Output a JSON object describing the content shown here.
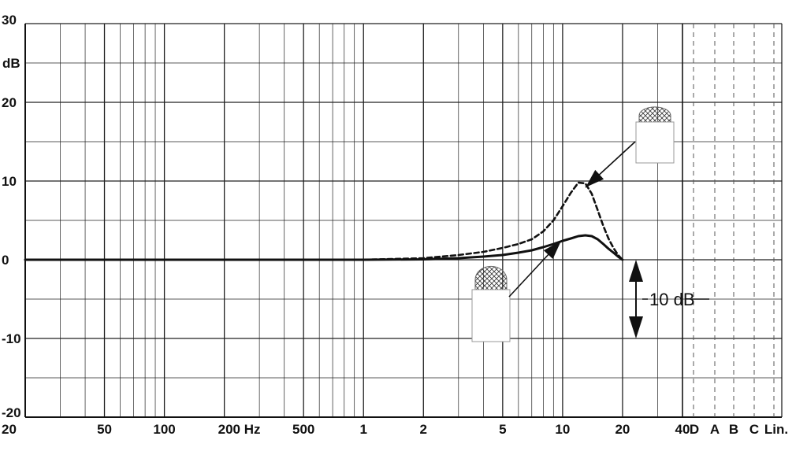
{
  "chart_data": {
    "type": "line",
    "y_unit": "dB",
    "x_tick_labels": [
      "20",
      "50",
      "100",
      "200 Hz",
      "500",
      "1",
      "2",
      "5",
      "10",
      "20",
      "40"
    ],
    "filter_labels": [
      "D",
      "A",
      "B",
      "C",
      "Lin."
    ],
    "y_tick_labels": [
      "30",
      "20",
      "10",
      "0",
      "-10",
      "-20"
    ],
    "xlim_hz": [
      20,
      40000
    ],
    "ylim": [
      -20,
      30
    ],
    "x_scale": "log",
    "grid": true,
    "series": [
      {
        "style": "dashed",
        "x": [
          20,
          1000,
          2000,
          3000,
          4000,
          5000,
          6000,
          7000,
          8000,
          9000,
          10000,
          11000,
          12000,
          13000,
          14000,
          15000,
          16000,
          17000,
          18000,
          19000,
          20000
        ],
        "y": [
          0,
          0,
          0.2,
          0.6,
          1.0,
          1.5,
          2.0,
          2.6,
          3.6,
          5.0,
          6.8,
          8.5,
          9.8,
          9.7,
          8.4,
          6.3,
          4.3,
          2.7,
          1.5,
          0.6,
          0
        ]
      },
      {
        "style": "solid",
        "x": [
          20,
          1000,
          2000,
          3000,
          4000,
          5000,
          6000,
          7000,
          8000,
          9000,
          10000,
          11000,
          12000,
          13000,
          14000,
          15000,
          16000,
          17000,
          18000,
          19000,
          20000
        ],
        "y": [
          0,
          0,
          0.05,
          0.2,
          0.4,
          0.6,
          0.9,
          1.2,
          1.6,
          2.0,
          2.4,
          2.7,
          3.0,
          3.1,
          3.0,
          2.6,
          2.0,
          1.4,
          0.9,
          0.4,
          0
        ]
      }
    ],
    "annotations": [
      {
        "text": "10 dB"
      }
    ],
    "legend_icons": [
      {
        "name": "microphone-capsule-icon",
        "points_to": "dashed-series"
      },
      {
        "name": "microphone-capsule-icon",
        "points_to": "solid-series"
      }
    ],
    "colors": {
      "lines": "#111111",
      "grid": "#222222",
      "background": "#ffffff"
    }
  }
}
